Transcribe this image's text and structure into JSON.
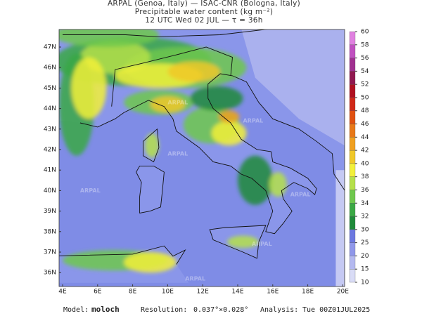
{
  "header": {
    "line1": "ARPAL (Genoa, Italy)  —  ISAC-CNR (Bologna, Italy)",
    "line2": "Precipitable water content (kg m⁻²)",
    "line3": "12 UTC Wed 02 JUL  —  τ = 36h"
  },
  "map": {
    "lat_labels": [
      "47N",
      "46N",
      "45N",
      "44N",
      "43N",
      "42N",
      "41N",
      "40N",
      "39N",
      "38N",
      "37N",
      "36N"
    ],
    "lon_labels": [
      "4E",
      "6E",
      "8E",
      "10E",
      "12E",
      "14E",
      "16E",
      "18E",
      "20E"
    ],
    "watermark": "ARPAL"
  },
  "colorbar": {
    "levels": [
      10,
      15,
      20,
      25,
      30,
      32,
      34,
      36,
      38,
      40,
      42,
      44,
      46,
      48,
      50,
      52,
      54,
      56,
      58,
      60
    ],
    "colors": [
      "#d9dcf6",
      "#b4b9f0",
      "#8f97ea",
      "#6c78e0",
      "#1f8a3a",
      "#3aa845",
      "#6fc84e",
      "#b5e04a",
      "#f2f03a",
      "#f0c828",
      "#f0a020",
      "#e87818",
      "#e05010",
      "#d02818",
      "#b01020",
      "#901850",
      "#a03090",
      "#c050c0",
      "#e080e0"
    ]
  },
  "footer": {
    "model_label": "Model:",
    "model": "moloch",
    "resolution_label": "Resolution:",
    "resolution": "0.037°×0.028°",
    "analysis_label": "Analysis:",
    "analysis": "Tue 00Z01JUL2025"
  }
}
